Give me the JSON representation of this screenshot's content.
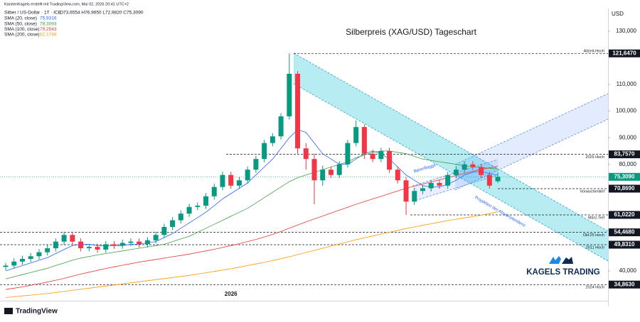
{
  "chart_data": {
    "type": "candlestick",
    "credit": "KarstenKagels erstellt mit TradingView.com, Mai 02, 2026 20:41 UTC+2",
    "symbol": "Silber / US-Dollar · 1T · ICE",
    "ohlc_label": "O73,6554 H76,9650 L72,9820 C75,3090",
    "title": "Silberpreis (XAG/USD) Tageschart",
    "currency": "USD",
    "brand": "KAGELS TRADING",
    "platform": "TradingView",
    "annotations": [
      "Bärenflagge",
      "Projektion der Abwärtstendenz"
    ],
    "up_color": "#089981",
    "down_color": "#f23645",
    "categories": [
      null,
      null,
      null,
      null,
      null,
      null,
      null,
      null,
      null,
      null,
      null,
      null,
      null,
      null,
      null,
      null,
      null,
      null,
      null,
      null,
      null,
      null,
      null,
      null,
      null,
      null,
      null,
      "2026",
      null,
      null,
      null,
      null,
      null,
      null,
      null,
      null,
      null,
      null,
      null,
      null,
      null,
      null,
      null,
      null,
      null,
      null,
      null,
      null,
      null,
      null,
      null,
      null,
      null,
      null,
      null,
      null,
      null,
      null,
      null,
      null
    ],
    "open": [
      41500,
      42000,
      43500,
      44500,
      45500,
      47000,
      48500,
      51000,
      53500,
      51000,
      48500,
      49000,
      48000,
      50000,
      49500,
      50500,
      51000,
      50000,
      51500,
      53500,
      56500,
      59000,
      61500,
      64000,
      64500,
      68000,
      71500,
      76000,
      72000,
      74000,
      78000,
      82000,
      88000,
      90500,
      98000,
      114000,
      86000,
      82000,
      74000,
      78000,
      76000,
      80000,
      88000,
      94000,
      84000,
      82000,
      85000,
      78000,
      74000,
      66000,
      70000,
      71000,
      73000,
      72000,
      76000,
      78000,
      80000,
      79000,
      76000,
      73655
    ],
    "high": [
      43000,
      44700,
      45700,
      46700,
      48200,
      49700,
      52200,
      54700,
      54700,
      52200,
      50200,
      50200,
      51200,
      51200,
      51700,
      52200,
      52200,
      52700,
      54700,
      57700,
      60200,
      62700,
      65200,
      65700,
      69200,
      72700,
      77200,
      77200,
      75200,
      79200,
      83200,
      89200,
      91700,
      99200,
      121647,
      115000,
      88000,
      84000,
      79500,
      79200,
      81200,
      89200,
      96500,
      95000,
      85500,
      86200,
      86200,
      79200,
      75200,
      71200,
      72200,
      74200,
      74200,
      77200,
      79200,
      81200,
      81200,
      80200,
      77200,
      76965
    ],
    "low": [
      40300,
      40800,
      42300,
      43300,
      44300,
      45800,
      47300,
      49800,
      49800,
      47300,
      47300,
      46800,
      46800,
      48300,
      48300,
      49300,
      48800,
      48800,
      50300,
      52300,
      55300,
      57800,
      60300,
      62800,
      63300,
      66800,
      70300,
      70800,
      70800,
      72800,
      76800,
      80800,
      86800,
      89300,
      96800,
      84000,
      78000,
      65000,
      72000,
      74800,
      74800,
      78800,
      86800,
      82000,
      80800,
      80800,
      76800,
      72800,
      61022,
      64800,
      68800,
      69800,
      70800,
      70800,
      74800,
      76800,
      77800,
      74800,
      70869,
      72982
    ],
    "close": [
      42000,
      43500,
      44500,
      45500,
      47000,
      48500,
      51000,
      53500,
      51000,
      48500,
      49000,
      48000,
      50000,
      49500,
      50500,
      51000,
      50000,
      51500,
      53500,
      56500,
      59000,
      61500,
      64000,
      64500,
      68000,
      71500,
      76000,
      72000,
      74000,
      78000,
      82000,
      88000,
      90500,
      98000,
      114000,
      86000,
      82000,
      74000,
      78000,
      76000,
      80000,
      88000,
      94000,
      84000,
      82000,
      85000,
      78000,
      74000,
      66000,
      70000,
      71000,
      73000,
      72000,
      76000,
      78000,
      80000,
      79000,
      76000,
      72000,
      75309
    ],
    "series": [
      {
        "name": "SMA (20, close)",
        "last_label": "75,9316",
        "color": "#2962ff",
        "values": [
          40000,
          41000,
          42000,
          43000,
          44000,
          45000,
          46500,
          48000,
          49500,
          50000,
          50000,
          49500,
          49500,
          49500,
          49500,
          50000,
          50000,
          50500,
          51000,
          52500,
          54000,
          56000,
          58000,
          60000,
          62000,
          64500,
          67000,
          69000,
          71000,
          73000,
          76000,
          79000,
          82000,
          86000,
          90000,
          93000,
          92000,
          88000,
          84000,
          82000,
          80000,
          80000,
          82000,
          84000,
          85000,
          84000,
          82000,
          79000,
          76000,
          74000,
          72000,
          71500,
          71500,
          72500,
          74000,
          76000,
          77000,
          77500,
          76500,
          75931
        ]
      },
      {
        "name": "SMA (50, close)",
        "last_label": "78,3093",
        "color": "#43a047",
        "values": [
          37000,
          37800,
          38600,
          39400,
          40200,
          41000,
          42000,
          43000,
          44000,
          44800,
          45400,
          46000,
          46500,
          47000,
          47500,
          48000,
          48500,
          49000,
          49500,
          50000,
          51000,
          52000,
          53000,
          54500,
          56000,
          57500,
          59000,
          60500,
          62000,
          63500,
          65500,
          67500,
          69500,
          71500,
          73500,
          75000,
          76000,
          77000,
          78000,
          79000,
          80000,
          81000,
          82500,
          83500,
          84500,
          85000,
          85000,
          84500,
          84000,
          83000,
          82000,
          81500,
          81000,
          80500,
          80000,
          79500,
          79000,
          78800,
          78500,
          78309
        ]
      },
      {
        "name": "SMA (100, close)",
        "last_label": "79,2543",
        "color": "#e53935",
        "values": [
          33000,
          33500,
          34000,
          34600,
          35200,
          35800,
          36500,
          37200,
          38000,
          38800,
          39500,
          40200,
          40900,
          41500,
          42100,
          42700,
          43300,
          43800,
          44300,
          44800,
          45300,
          45800,
          46300,
          46900,
          47500,
          48100,
          48800,
          49500,
          50200,
          51000,
          51800,
          52700,
          53700,
          54800,
          56000,
          57200,
          58400,
          59500,
          60600,
          61700,
          62800,
          63900,
          65000,
          66000,
          67000,
          68000,
          69000,
          70000,
          71000,
          71800,
          72600,
          73400,
          74200,
          75000,
          75800,
          76600,
          77400,
          78100,
          78700,
          79254
        ]
      },
      {
        "name": "SMA (200, close)",
        "last_label": "62,1748",
        "color": "#ff9800",
        "values": [
          30000,
          30300,
          30600,
          30900,
          31200,
          31500,
          31900,
          32300,
          32700,
          33100,
          33500,
          33900,
          34300,
          34700,
          35100,
          35500,
          35900,
          36300,
          36700,
          37100,
          37500,
          37900,
          38300,
          38800,
          39300,
          39800,
          40300,
          40800,
          41400,
          42000,
          42600,
          43200,
          43900,
          44600,
          45300,
          46100,
          46900,
          47700,
          48500,
          49300,
          50100,
          50900,
          51700,
          52400,
          53100,
          53800,
          54500,
          55200,
          55900,
          56500,
          57100,
          57700,
          58300,
          58900,
          59400,
          59900,
          60400,
          60900,
          61500,
          62174
        ]
      }
    ],
    "levels": [
      {
        "value": 121647,
        "label": "121,6470",
        "note": "Allzeit-Hoch"
      },
      {
        "value": 83757,
        "label": "83,7570",
        "note": "2025 Hoch"
      },
      {
        "value": 75309,
        "label": "75,3090",
        "current": true
      },
      {
        "value": 70869,
        "label": "70,8690",
        "note": "Vorwochentief"
      },
      {
        "value": 61022,
        "label": "61,0220",
        "note": "März-Tief"
      },
      {
        "value": 54468,
        "label": "54,4680",
        "note": "Okt'25 Hoch"
      },
      {
        "value": 49831,
        "label": "49,8310",
        "note": "2011 Hoch"
      },
      {
        "value": 34863,
        "label": "34,8630",
        "note": "2024 Hoch"
      }
    ],
    "ylim": [
      28800,
      138500
    ],
    "yticks": [
      {
        "value": 130000,
        "label": "130,000"
      },
      {
        "value": 110000,
        "label": "110,000"
      },
      {
        "value": 100000,
        "label": "100,000"
      },
      {
        "value": 90000,
        "label": "90,000"
      },
      {
        "value": 80000,
        "label": "80,000"
      },
      {
        "value": 40000,
        "label": "40,000"
      }
    ]
  }
}
